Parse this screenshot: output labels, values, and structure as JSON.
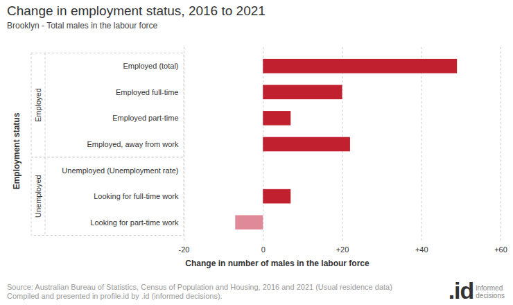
{
  "chart_data": {
    "type": "bar",
    "orientation": "horizontal",
    "title": "Change in employment status, 2016 to 2021",
    "subtitle": "Brooklyn - Total males in the labour force",
    "xlabel": "Change in number of males in the labour force",
    "ylabel": "Employment status",
    "categories": [
      "Employed (total)",
      "Employed full-time",
      "Employed part-time",
      "Employed, away from work",
      "Unemployed (Unemployment rate)",
      "Looking for full-time work",
      "Looking for part-time work"
    ],
    "groups": [
      "Employed",
      "Employed",
      "Employed",
      "Employed",
      "Unemployed",
      "Unemployed",
      "Unemployed"
    ],
    "values": [
      49,
      20,
      7,
      22,
      null,
      7,
      -7
    ],
    "colors": [
      "#c1202f",
      "#c1202f",
      "#c1202f",
      "#c1202f",
      "#c1202f",
      "#c1202f",
      "#e08a99"
    ],
    "xlim": [
      -20,
      60
    ],
    "xticks": [
      -20,
      0,
      {
        "value": 20,
        "label": "+20"
      },
      {
        "value": 40,
        "label": "+40"
      },
      {
        "value": 60,
        "label": "+60"
      }
    ],
    "grid": true,
    "source": [
      "Source: Australian Bureau of Statistics, Census of Population and Housing, 2016 and 2021 (Usual residence data)",
      "Compiled and presented in profile.id by .id (informed decisions)."
    ],
    "logo": {
      "mark": ".id",
      "text": [
        "informed",
        "decisions"
      ]
    }
  }
}
